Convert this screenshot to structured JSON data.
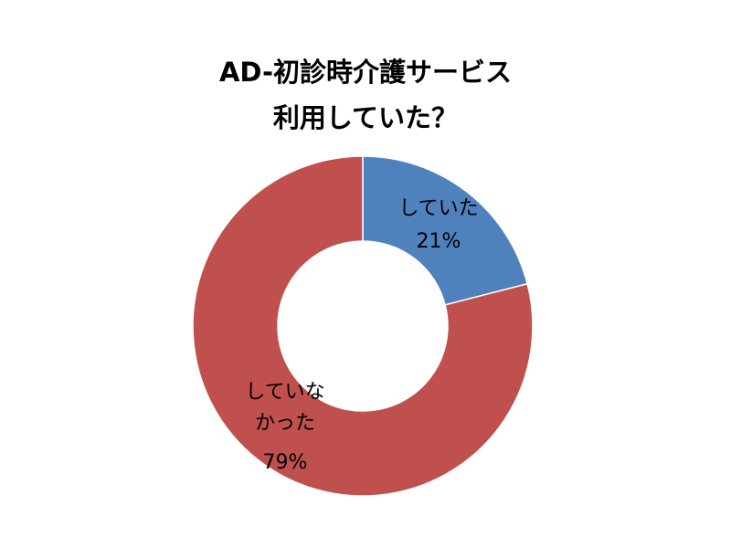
{
  "chart_data": {
    "type": "donut",
    "title": [
      "AD-初診時介護サービス",
      "利用していた？"
    ],
    "categories": [
      "していた",
      "していなかった"
    ],
    "values": [
      21,
      79
    ],
    "value_labels": [
      "21%",
      "79%"
    ],
    "colors": [
      "#4f81bd",
      "#c0504d"
    ]
  }
}
